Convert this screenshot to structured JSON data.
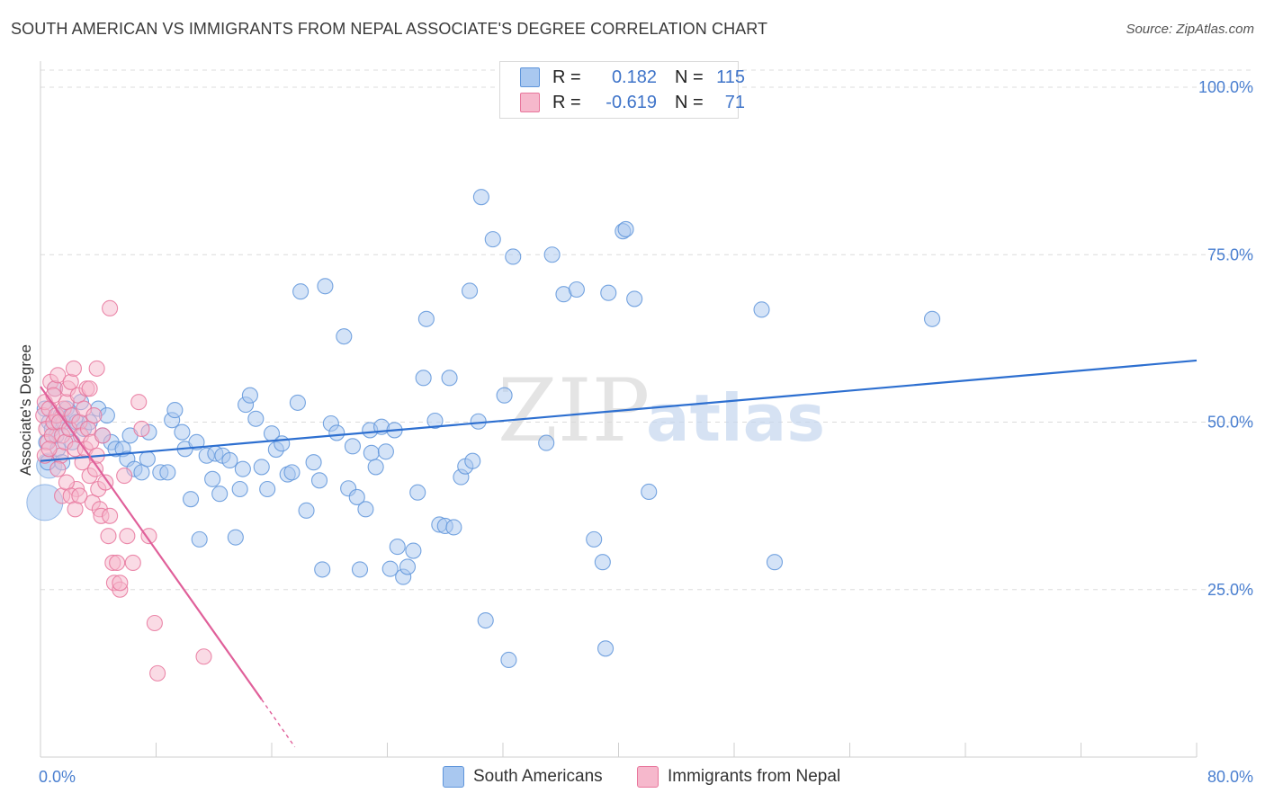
{
  "header": {
    "title": "SOUTH AMERICAN VS IMMIGRANTS FROM NEPAL ASSOCIATE'S DEGREE CORRELATION CHART",
    "source": "Source: ZipAtlas.com"
  },
  "watermark": {
    "part1": "ZIP",
    "part2": "atlas"
  },
  "legend": {
    "rows": [
      {
        "r_label": "R =",
        "r_value": "0.182",
        "n_label": "N =",
        "n_value": "115",
        "color": "#a9c8f0"
      },
      {
        "r_label": "R =",
        "r_value": "-0.619",
        "n_label": "N =",
        "n_value": "71",
        "color": "#f6b8cc"
      }
    ]
  },
  "bottom_legend": {
    "south_american": "South Americans",
    "nepal": "Immigrants from Nepal"
  },
  "colors": {
    "blue_fill": "#a9c8f0",
    "blue_stroke": "#5f95db",
    "blue_line": "#2d6fd0",
    "pink_fill": "#f6b8cc",
    "pink_stroke": "#e8769c",
    "pink_line": "#e0609a",
    "tick": "#4a7fd0"
  },
  "chart_data": {
    "type": "scatter",
    "title": "SOUTH AMERICAN VS IMMIGRANTS FROM NEPAL ASSOCIATE'S DEGREE CORRELATION CHART",
    "xlabel": "",
    "ylabel": "Associate's Degree",
    "xlim": [
      0,
      80
    ],
    "ylim": [
      0,
      100
    ],
    "x_tick_labels": [
      "0.0%",
      "80.0%"
    ],
    "y_ticks": [
      25,
      50,
      75,
      100
    ],
    "y_tick_labels": [
      "25.0%",
      "50.0%",
      "75.0%",
      "100.0%"
    ],
    "grid": true,
    "series": [
      {
        "name": "South Americans",
        "r": 0.182,
        "n": 115,
        "trend": {
          "x0": 0,
          "y0": 44.2,
          "x1": 80,
          "y1": 59.2
        },
        "points": [
          [
            0.3,
            52
          ],
          [
            0.4,
            47
          ],
          [
            0.5,
            44
          ],
          [
            0.6,
            50
          ],
          [
            0.8,
            49
          ],
          [
            1,
            55
          ],
          [
            1.1,
            48
          ],
          [
            1.2,
            46
          ],
          [
            1.4,
            51
          ],
          [
            1.5,
            44
          ],
          [
            1.6,
            50
          ],
          [
            1.8,
            52
          ],
          [
            2,
            49
          ],
          [
            2.1,
            51
          ],
          [
            2.2,
            47
          ],
          [
            2.5,
            50
          ],
          [
            2.8,
            53
          ],
          [
            3,
            49
          ],
          [
            3.4,
            50
          ],
          [
            4,
            52
          ],
          [
            4.3,
            48
          ],
          [
            4.6,
            51
          ],
          [
            4.9,
            47
          ],
          [
            5.2,
            46
          ],
          [
            5.7,
            46
          ],
          [
            6,
            44.5
          ],
          [
            6.2,
            48
          ],
          [
            6.5,
            43
          ],
          [
            7,
            42.5
          ],
          [
            7.5,
            48.5
          ],
          [
            7.4,
            44.5
          ],
          [
            8.3,
            42.5
          ],
          [
            8.8,
            42.5
          ],
          [
            9.1,
            50.3
          ],
          [
            9.3,
            51.8
          ],
          [
            9.8,
            48.5
          ],
          [
            10,
            46
          ],
          [
            10.4,
            38.5
          ],
          [
            10.8,
            47
          ],
          [
            11,
            32.5
          ],
          [
            11.5,
            45
          ],
          [
            11.9,
            41.5
          ],
          [
            12.1,
            45.3
          ],
          [
            12.4,
            39.3
          ],
          [
            12.6,
            45
          ],
          [
            13.1,
            44.3
          ],
          [
            13.5,
            32.8
          ],
          [
            13.8,
            40
          ],
          [
            14,
            43
          ],
          [
            14.2,
            52.6
          ],
          [
            14.5,
            54
          ],
          [
            14.9,
            50.5
          ],
          [
            15.3,
            43.3
          ],
          [
            15.7,
            40
          ],
          [
            16,
            48.3
          ],
          [
            16.3,
            45.9
          ],
          [
            16.7,
            46.8
          ],
          [
            17.1,
            42.2
          ],
          [
            17.4,
            42.5
          ],
          [
            17.8,
            52.9
          ],
          [
            18,
            69.5
          ],
          [
            18.4,
            36.8
          ],
          [
            18.9,
            44
          ],
          [
            19.3,
            41.3
          ],
          [
            19.5,
            28
          ],
          [
            19.7,
            70.3
          ],
          [
            20.1,
            49.8
          ],
          [
            20.5,
            48.4
          ],
          [
            21,
            62.8
          ],
          [
            21.3,
            40.1
          ],
          [
            21.6,
            46.4
          ],
          [
            21.9,
            38.8
          ],
          [
            22.1,
            28
          ],
          [
            22.5,
            37
          ],
          [
            22.8,
            48.8
          ],
          [
            22.9,
            45.4
          ],
          [
            23.2,
            43.3
          ],
          [
            23.6,
            49.3
          ],
          [
            23.9,
            45.6
          ],
          [
            24.2,
            28.1
          ],
          [
            24.5,
            48.8
          ],
          [
            24.7,
            31.4
          ],
          [
            25.1,
            26.9
          ],
          [
            25.4,
            28.4
          ],
          [
            25.8,
            30.8
          ],
          [
            26.1,
            39.5
          ],
          [
            26.5,
            56.6
          ],
          [
            26.7,
            65.4
          ],
          [
            27.3,
            50.2
          ],
          [
            27.6,
            34.7
          ],
          [
            28,
            34.5
          ],
          [
            28.3,
            56.6
          ],
          [
            28.6,
            34.3
          ],
          [
            29.1,
            41.8
          ],
          [
            29.4,
            43.4
          ],
          [
            29.7,
            69.6
          ],
          [
            29.9,
            44.2
          ],
          [
            30.3,
            50.1
          ],
          [
            30.5,
            83.6
          ],
          [
            30.8,
            20.4
          ],
          [
            31.3,
            77.3
          ],
          [
            32.1,
            54
          ],
          [
            32.4,
            14.5
          ],
          [
            32.7,
            74.7
          ],
          [
            35,
            46.9
          ],
          [
            35.4,
            75
          ],
          [
            36.2,
            69.1
          ],
          [
            37.1,
            69.8
          ],
          [
            38.3,
            32.5
          ],
          [
            38.9,
            29.1
          ],
          [
            39.1,
            16.2
          ],
          [
            39.3,
            69.3
          ],
          [
            40.3,
            78.5
          ],
          [
            40.5,
            78.8
          ],
          [
            41.1,
            68.4
          ],
          [
            42.1,
            39.6
          ],
          [
            49.9,
            66.8
          ],
          [
            50.8,
            29.1
          ],
          [
            61.7,
            65.4
          ]
        ]
      },
      {
        "name": "Immigrants from Nepal",
        "r": -0.619,
        "n": 71,
        "trend": {
          "x0": 0,
          "y0": 55.3,
          "x1": 15.3,
          "y1": 8.6,
          "dash_to_x": 17.6,
          "dash_to_y": 1.5
        },
        "points": [
          [
            0.2,
            51
          ],
          [
            0.3,
            53
          ],
          [
            0.4,
            49
          ],
          [
            0.5,
            47
          ],
          [
            0.6,
            52
          ],
          [
            0.7,
            56
          ],
          [
            0.8,
            48
          ],
          [
            0.9,
            50
          ],
          [
            1,
            55
          ],
          [
            1.1,
            51
          ],
          [
            1.2,
            57
          ],
          [
            1.3,
            50
          ],
          [
            1.4,
            45
          ],
          [
            1.5,
            48
          ],
          [
            1.6,
            52
          ],
          [
            1.7,
            47
          ],
          [
            1.8,
            53
          ],
          [
            1.9,
            55
          ],
          [
            2,
            49
          ],
          [
            2.1,
            56
          ],
          [
            2.2,
            51
          ],
          [
            2.3,
            58
          ],
          [
            2.4,
            46
          ],
          [
            2.5,
            40
          ],
          [
            2.6,
            54
          ],
          [
            2.7,
            50
          ],
          [
            2.8,
            48
          ],
          [
            2.9,
            44
          ],
          [
            3,
            52
          ],
          [
            3.1,
            46
          ],
          [
            3.2,
            55
          ],
          [
            3.3,
            49
          ],
          [
            3.4,
            42
          ],
          [
            3.5,
            47
          ],
          [
            3.6,
            38
          ],
          [
            3.7,
            51
          ],
          [
            3.8,
            43
          ],
          [
            3.9,
            45
          ],
          [
            4,
            40
          ],
          [
            4.1,
            37
          ],
          [
            4.2,
            36
          ],
          [
            4.3,
            48
          ],
          [
            4.5,
            41
          ],
          [
            4.7,
            33
          ],
          [
            4.8,
            36
          ],
          [
            5,
            29
          ],
          [
            5.1,
            26
          ],
          [
            5.3,
            29
          ],
          [
            5.5,
            25
          ],
          [
            5.8,
            42
          ],
          [
            0.3,
            45
          ],
          [
            0.6,
            46
          ],
          [
            0.9,
            54
          ],
          [
            1.2,
            43
          ],
          [
            1.5,
            39
          ],
          [
            1.8,
            41
          ],
          [
            2.1,
            39
          ],
          [
            2.4,
            37
          ],
          [
            2.7,
            39
          ],
          [
            3.4,
            55
          ],
          [
            3.9,
            58
          ],
          [
            4.8,
            67
          ],
          [
            5.5,
            26
          ],
          [
            6,
            33
          ],
          [
            6.4,
            29
          ],
          [
            6.8,
            53
          ],
          [
            7,
            49
          ],
          [
            7.5,
            33
          ],
          [
            7.9,
            20
          ],
          [
            8.1,
            12.5
          ],
          [
            11.3,
            15
          ]
        ]
      }
    ]
  }
}
